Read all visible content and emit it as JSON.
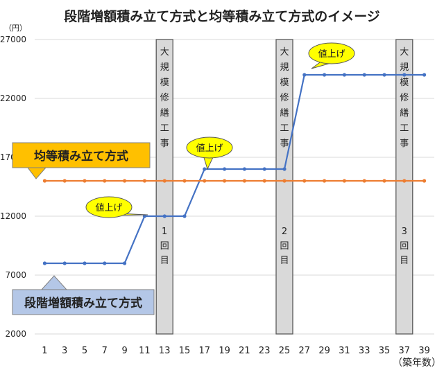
{
  "chart_data": {
    "type": "line",
    "title": "段階増額積み立て方式と均等積み立て方式のイメージ",
    "ylabel": "（円）",
    "xlabel": "（築年数）",
    "ylim": [
      2000,
      27000
    ],
    "yticks": [
      2000,
      7000,
      12000,
      17000,
      22000,
      27000
    ],
    "xticks": [
      1,
      3,
      5,
      7,
      9,
      11,
      13,
      15,
      17,
      19,
      21,
      23,
      25,
      27,
      29,
      31,
      33,
      35,
      37,
      39
    ],
    "grid": "horizontal",
    "series": [
      {
        "name": "段階増額積み立て方式",
        "color": "#4472C4",
        "x": [
          1,
          3,
          5,
          7,
          9,
          11,
          13,
          15,
          17,
          19,
          21,
          23,
          25,
          27,
          29,
          31,
          33,
          35,
          37,
          39
        ],
        "values": [
          8000,
          8000,
          8000,
          8000,
          8000,
          12000,
          12000,
          12000,
          16000,
          16000,
          16000,
          16000,
          16000,
          24000,
          24000,
          24000,
          24000,
          24000,
          24000,
          24000
        ]
      },
      {
        "name": "均等積み立て方式",
        "color": "#ED7D31",
        "x": [
          1,
          3,
          5,
          7,
          9,
          11,
          13,
          15,
          17,
          19,
          21,
          23,
          25,
          27,
          29,
          31,
          33,
          35,
          37,
          39
        ],
        "values": [
          15000,
          15000,
          15000,
          15000,
          15000,
          15000,
          15000,
          15000,
          15000,
          15000,
          15000,
          15000,
          15000,
          15000,
          15000,
          15000,
          15000,
          15000,
          15000,
          15000
        ]
      }
    ],
    "repairs": [
      {
        "year": 13,
        "label": "大規模修繕工事",
        "count": "1回目"
      },
      {
        "year": 25,
        "label": "大規模修繕工事",
        "count": "2回目"
      },
      {
        "year": 37,
        "label": "大規模修繕工事",
        "count": "3回目"
      }
    ],
    "callouts": [
      {
        "text": "値上げ",
        "year": 11
      },
      {
        "text": "値上げ",
        "year": 17
      },
      {
        "text": "値上げ",
        "year": 27
      }
    ],
    "series_labels": [
      {
        "text": "均等積み立て方式",
        "color": "#FFC000"
      },
      {
        "text": "段階増額積み立て方式",
        "color": "#B4C7E7"
      }
    ]
  }
}
